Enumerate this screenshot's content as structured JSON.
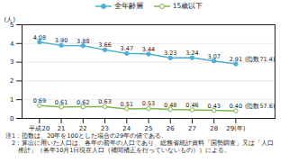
{
  "chart_data": {
    "type": "line",
    "x": [
      20,
      21,
      22,
      23,
      24,
      25,
      26,
      27,
      28,
      29
    ],
    "xlim": [
      19.2,
      30.8
    ],
    "xticks": [
      {
        "value": 20,
        "label": "平成20"
      },
      21,
      22,
      23,
      24,
      25,
      26,
      27,
      28,
      {
        "value": 29,
        "label": "29(年)"
      }
    ],
    "ylim": [
      0,
      5
    ],
    "yticks": [
      0,
      1,
      2,
      3,
      4,
      5
    ],
    "ylabel": "(人)",
    "grid": true,
    "legend": "top",
    "data_labels": true,
    "series": [
      {
        "name": "全年齢層",
        "color": "#4bafd6",
        "marker": "circle",
        "values": [
          4.08,
          3.9,
          3.88,
          3.66,
          3.47,
          3.44,
          3.23,
          3.24,
          3.07,
          2.91
        ],
        "value_labels": [
          "4.08",
          "3.90",
          "3.88",
          "3.66",
          "3.47",
          "3.44",
          "3.23",
          "3.24",
          "3.07",
          "2.91"
        ]
      },
      {
        "name": "15歳以下",
        "color": "#7db84a",
        "marker": "open_circle",
        "values": [
          0.69,
          0.61,
          0.62,
          0.63,
          0.51,
          0.53,
          0.48,
          0.46,
          0.43,
          0.4
        ],
        "value_labels": [
          "0.69",
          "0.61",
          "0.62",
          "0.63",
          "0.51",
          "0.53",
          "0.48",
          "0.46",
          "0.43",
          "0.40"
        ]
      }
    ],
    "annotations": [
      {
        "text": "(指数71.4)",
        "x": 29,
        "y": 2.91
      },
      {
        "text": "(指数57.6)",
        "x": 29,
        "y": 0.4
      }
    ],
    "notes": [
      "注1：指数は、20年を100とした場合の29年の値である。",
      "　2：算出に用いた人口は、各年の前年の人口であり、総務省統計資料「国勢調査」又は「人口",
      "　　推計」（各年10月1日現在人口（補間補正を行っていないもの））による。"
    ]
  }
}
